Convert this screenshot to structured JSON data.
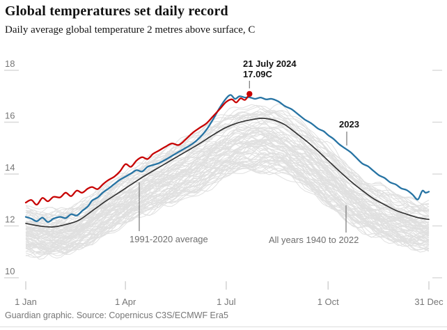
{
  "header": {
    "title": "Global temperatures set daily record",
    "subtitle": "Daily average global temperature 2 metres above surface, C"
  },
  "annotations": {
    "peak": {
      "line1": "21 July 2024",
      "line2": "17.09C",
      "day": 202,
      "temp": 17.09
    },
    "year2023": {
      "label": "2023"
    },
    "average": {
      "label": "1991-2020 average"
    },
    "all_years": {
      "label": "All years 1940 to 2022"
    }
  },
  "footer": {
    "source": "Guardian graphic. Source: Copernicus C3S/ECMWF Era5"
  },
  "colors": {
    "red": "#c70000",
    "blue": "#2673a3",
    "black_line": "#333333",
    "gray_line": "#e0e0e0",
    "tick": "#d9d9d9",
    "axis_text": "#767676",
    "leader": "#767676"
  },
  "chart_data": {
    "type": "line",
    "title": "Daily average global temperature 2 metres above surface, C",
    "xlabel": "",
    "ylabel": "C",
    "x_unit": "day_of_year",
    "x_range_days": [
      0,
      364
    ],
    "ylim": [
      10,
      18
    ],
    "grid": false,
    "legend_position": "inline-annotations",
    "y_axis": {
      "ticks": [
        10,
        12,
        14,
        16,
        18
      ]
    },
    "x_axis": {
      "ticks": [
        {
          "day": 0,
          "label": "1 Jan"
        },
        {
          "day": 90,
          "label": "1 Apr"
        },
        {
          "day": 181,
          "label": "1 Jul"
        },
        {
          "day": 273,
          "label": "1 Oct"
        },
        {
          "day": 364,
          "label": "31 Dec"
        }
      ]
    },
    "series": [
      {
        "name": "2024",
        "color_key": "red",
        "width": 2.3,
        "end_marker": true,
        "points": [
          [
            0,
            12.9
          ],
          [
            5,
            13.0
          ],
          [
            10,
            12.82
          ],
          [
            15,
            13.08
          ],
          [
            20,
            12.95
          ],
          [
            25,
            13.12
          ],
          [
            31,
            13.1
          ],
          [
            36,
            13.28
          ],
          [
            41,
            13.15
          ],
          [
            46,
            13.36
          ],
          [
            51,
            13.28
          ],
          [
            56,
            13.44
          ],
          [
            60,
            13.5
          ],
          [
            65,
            13.42
          ],
          [
            70,
            13.62
          ],
          [
            75,
            13.78
          ],
          [
            80,
            13.9
          ],
          [
            85,
            14.1
          ],
          [
            90,
            14.38
          ],
          [
            95,
            14.28
          ],
          [
            100,
            14.52
          ],
          [
            105,
            14.65
          ],
          [
            110,
            14.58
          ],
          [
            115,
            14.78
          ],
          [
            120,
            14.9
          ],
          [
            126,
            15.05
          ],
          [
            132,
            15.18
          ],
          [
            138,
            15.12
          ],
          [
            144,
            15.32
          ],
          [
            151,
            15.6
          ],
          [
            157,
            15.78
          ],
          [
            163,
            15.95
          ],
          [
            169,
            16.22
          ],
          [
            175,
            16.5
          ],
          [
            181,
            16.78
          ],
          [
            186,
            16.88
          ],
          [
            190,
            16.76
          ],
          [
            194,
            16.92
          ],
          [
            198,
            16.86
          ],
          [
            202,
            17.09
          ]
        ]
      },
      {
        "name": "2023",
        "color_key": "blue",
        "width": 2.3,
        "end_marker": false,
        "points": [
          [
            0,
            12.35
          ],
          [
            5,
            12.28
          ],
          [
            10,
            12.18
          ],
          [
            15,
            12.32
          ],
          [
            20,
            12.15
          ],
          [
            25,
            12.28
          ],
          [
            31,
            12.35
          ],
          [
            36,
            12.3
          ],
          [
            41,
            12.45
          ],
          [
            46,
            12.4
          ],
          [
            51,
            12.58
          ],
          [
            56,
            12.75
          ],
          [
            60,
            12.98
          ],
          [
            65,
            13.1
          ],
          [
            70,
            13.3
          ],
          [
            75,
            13.45
          ],
          [
            80,
            13.62
          ],
          [
            85,
            13.78
          ],
          [
            90,
            13.9
          ],
          [
            95,
            14.02
          ],
          [
            100,
            14.15
          ],
          [
            105,
            14.1
          ],
          [
            110,
            14.28
          ],
          [
            115,
            14.35
          ],
          [
            120,
            14.42
          ],
          [
            126,
            14.55
          ],
          [
            132,
            14.7
          ],
          [
            138,
            14.85
          ],
          [
            144,
            15.0
          ],
          [
            151,
            15.18
          ],
          [
            157,
            15.4
          ],
          [
            163,
            15.7
          ],
          [
            169,
            16.1
          ],
          [
            175,
            16.55
          ],
          [
            181,
            16.92
          ],
          [
            185,
            17.05
          ],
          [
            189,
            16.9
          ],
          [
            193,
            17.0
          ],
          [
            198,
            16.95
          ],
          [
            202,
            16.96
          ],
          [
            207,
            16.9
          ],
          [
            212,
            16.95
          ],
          [
            217,
            16.88
          ],
          [
            222,
            16.9
          ],
          [
            228,
            16.8
          ],
          [
            234,
            16.62
          ],
          [
            240,
            16.5
          ],
          [
            246,
            16.3
          ],
          [
            252,
            16.1
          ],
          [
            258,
            15.95
          ],
          [
            264,
            15.75
          ],
          [
            269,
            15.65
          ],
          [
            273,
            15.5
          ],
          [
            278,
            15.35
          ],
          [
            283,
            15.15
          ],
          [
            288,
            15.0
          ],
          [
            293,
            14.85
          ],
          [
            298,
            14.65
          ],
          [
            304,
            14.4
          ],
          [
            309,
            14.3
          ],
          [
            314,
            14.12
          ],
          [
            319,
            13.95
          ],
          [
            324,
            13.85
          ],
          [
            329,
            13.68
          ],
          [
            334,
            13.6
          ],
          [
            339,
            13.45
          ],
          [
            344,
            13.38
          ],
          [
            349,
            13.22
          ],
          [
            354,
            13.02
          ],
          [
            358,
            13.35
          ],
          [
            361,
            13.28
          ],
          [
            364,
            13.32
          ]
        ]
      },
      {
        "name": "1991-2020 average",
        "color_key": "black_line",
        "width": 1.7,
        "end_marker": false,
        "points": [
          [
            0,
            12.1
          ],
          [
            12,
            12.0
          ],
          [
            24,
            11.96
          ],
          [
            36,
            12.05
          ],
          [
            48,
            12.22
          ],
          [
            60,
            12.58
          ],
          [
            72,
            12.95
          ],
          [
            84,
            13.28
          ],
          [
            96,
            13.62
          ],
          [
            108,
            13.95
          ],
          [
            120,
            14.25
          ],
          [
            132,
            14.55
          ],
          [
            144,
            14.85
          ],
          [
            156,
            15.15
          ],
          [
            168,
            15.48
          ],
          [
            180,
            15.78
          ],
          [
            192,
            15.98
          ],
          [
            204,
            16.1
          ],
          [
            214,
            16.15
          ],
          [
            224,
            16.08
          ],
          [
            234,
            15.9
          ],
          [
            244,
            15.58
          ],
          [
            254,
            15.25
          ],
          [
            264,
            14.88
          ],
          [
            274,
            14.48
          ],
          [
            284,
            14.08
          ],
          [
            294,
            13.7
          ],
          [
            304,
            13.36
          ],
          [
            314,
            13.05
          ],
          [
            324,
            12.82
          ],
          [
            334,
            12.6
          ],
          [
            344,
            12.45
          ],
          [
            354,
            12.32
          ],
          [
            364,
            12.25
          ]
        ]
      }
    ],
    "background_series": {
      "name": "All years 1940 to 2022",
      "color_key": "gray_line",
      "count": 83,
      "width": 1,
      "winter_offset_range": [
        -1.05,
        0.58
      ],
      "summer_offset_scale": 1.45,
      "summer_offset_shift": -0.35,
      "noise_amp_range": [
        0.08,
        0.2
      ],
      "seed": 11
    }
  }
}
